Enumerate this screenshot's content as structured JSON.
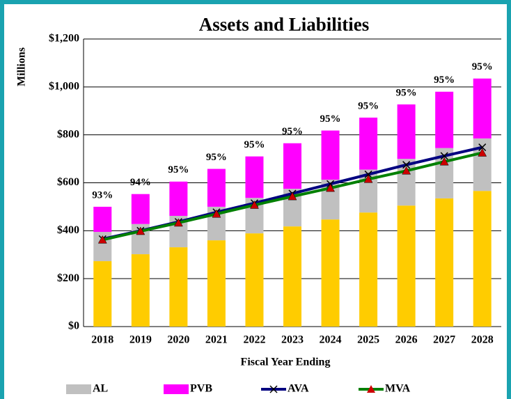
{
  "chart_data": {
    "type": "stacked_bar_line",
    "title": "Assets and Liabilities",
    "y_label": "Millions",
    "x_label": "Fiscal Year Ending",
    "categories": [
      "2018",
      "2019",
      "2020",
      "2021",
      "2022",
      "2023",
      "2024",
      "2025",
      "2026",
      "2027",
      "2028"
    ],
    "series": [
      {
        "color": "#ffcc00",
        "kind": "bar",
        "values": [
          273,
          302,
          331,
          360,
          389,
          418,
          447,
          476,
          505,
          535,
          566
        ]
      },
      {
        "name": "AL",
        "color": "#c0c0c0",
        "kind": "bar",
        "values": [
          122,
          126,
          131,
          140,
          148,
          157,
          166,
          179,
          195,
          210,
          219
        ]
      },
      {
        "name": "PVB",
        "color": "#ff00ff",
        "kind": "bar",
        "values": [
          105,
          125,
          143,
          158,
          173,
          190,
          205,
          217,
          227,
          235,
          250
        ]
      },
      {
        "name": "AVA",
        "color": "#000080",
        "kind": "line",
        "marker": "x",
        "values": [
          365,
          400,
          437,
          477,
          515,
          555,
          595,
          635,
          675,
          712,
          748
        ]
      },
      {
        "name": "MVA",
        "color": "#008000",
        "kind": "line",
        "marker": "triangle",
        "marker_color": "#cc0000",
        "values": [
          362,
          398,
          433,
          470,
          507,
          543,
          578,
          615,
          650,
          688,
          725
        ]
      }
    ],
    "funded_ratio": {
      "values": [
        93,
        94,
        95,
        95,
        95,
        95,
        95,
        95,
        95,
        95,
        95
      ],
      "value_labels": [
        "93%",
        "94%",
        "95%",
        "95%",
        "95%",
        "95%",
        "95%",
        "95%",
        "95%",
        "95%",
        "95%"
      ]
    },
    "ylim": [
      0,
      1200
    ],
    "yticks": [
      {
        "value": 0,
        "label": "$0"
      },
      {
        "value": 200,
        "label": "$200"
      },
      {
        "value": 400,
        "label": "$400"
      },
      {
        "value": 600,
        "label": "$600"
      },
      {
        "value": 800,
        "label": "$800"
      },
      {
        "value": 1000,
        "label": "$1,000"
      },
      {
        "value": 1200,
        "label": "$1,200"
      }
    ],
    "grid": true
  }
}
